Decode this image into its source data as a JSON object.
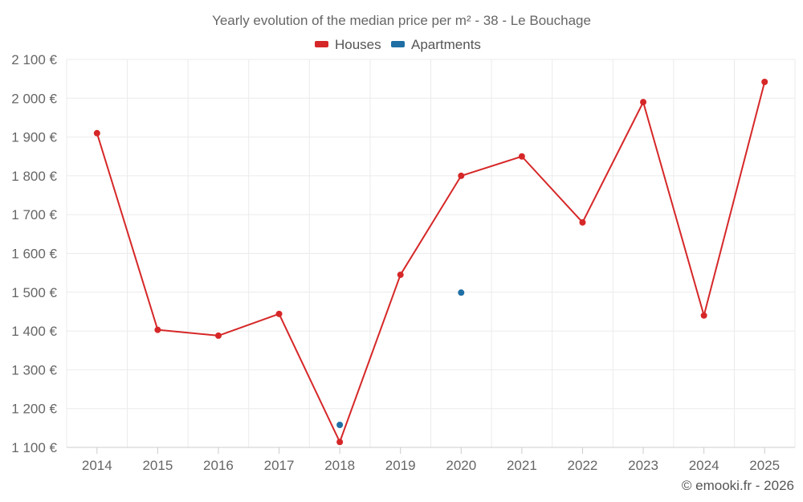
{
  "chart_data": {
    "type": "line",
    "title": "Yearly evolution of the median price per m² - 38 - Le Bouchage",
    "categories": [
      "2014",
      "2015",
      "2016",
      "2017",
      "2018",
      "2019",
      "2020",
      "2021",
      "2022",
      "2023",
      "2024",
      "2025"
    ],
    "y_tick_labels": [
      "1 100 €",
      "1 200 €",
      "1 300 €",
      "1 400 €",
      "1 500 €",
      "1 600 €",
      "1 700 €",
      "1 800 €",
      "1 900 €",
      "2 000 €",
      "2 100 €"
    ],
    "y_ticks": [
      1100,
      1200,
      1300,
      1400,
      1500,
      1600,
      1700,
      1800,
      1900,
      2000,
      2100
    ],
    "ylim": [
      1100,
      2100
    ],
    "grid": true,
    "legend_position": "top-center",
    "series": [
      {
        "name": "Houses",
        "color": "#d62728",
        "line": true,
        "values": [
          1910,
          1403,
          1388,
          1444,
          1114,
          1545,
          1800,
          1850,
          1680,
          1990,
          1440,
          2042
        ]
      },
      {
        "name": "Apartments",
        "color": "#1f6fa5",
        "line": false,
        "values": [
          null,
          null,
          null,
          null,
          1158,
          null,
          1499,
          null,
          null,
          null,
          null,
          null
        ]
      }
    ]
  },
  "credit": "© emooki.fr - 2026"
}
